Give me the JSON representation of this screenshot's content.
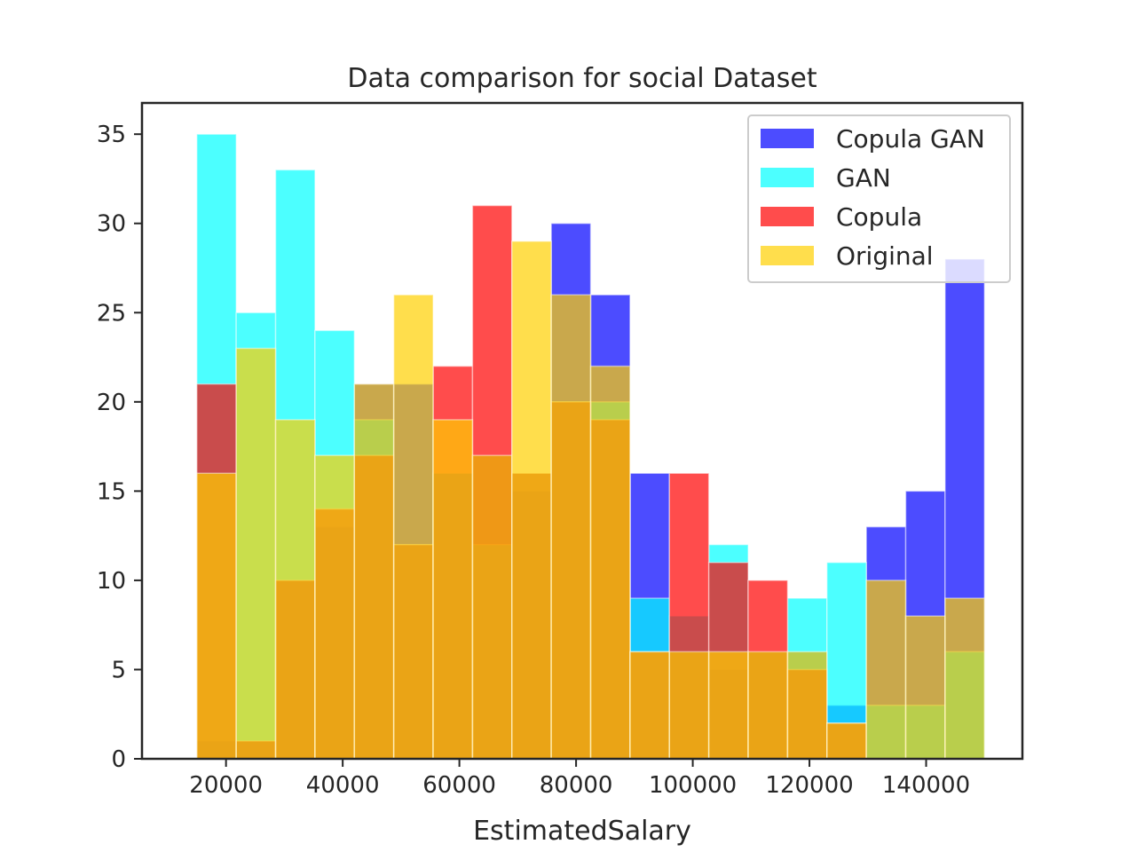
{
  "chart_data": {
    "type": "bar",
    "subtype": "overlaid-histogram",
    "title": "Data comparison for social Dataset",
    "xlabel": "EstimatedSalary",
    "ylabel": "",
    "xlim": [
      5600,
      156500
    ],
    "ylim": [
      0,
      36.75
    ],
    "xticks": [
      20000,
      40000,
      60000,
      80000,
      100000,
      120000,
      140000
    ],
    "xtick_labels": [
      "20000",
      "40000",
      "60000",
      "80000",
      "100000",
      "120000",
      "140000"
    ],
    "yticks": [
      0,
      5,
      10,
      15,
      20,
      25,
      30,
      35
    ],
    "ytick_labels": [
      "0",
      "5",
      "10",
      "15",
      "20",
      "25",
      "30",
      "35"
    ],
    "grid": false,
    "legend_position": "upper-right",
    "bin_edges": [
      15000,
      21750,
      28500,
      35250,
      42000,
      48750,
      55500,
      62250,
      69000,
      75750,
      82500,
      89250,
      96000,
      102750,
      109500,
      116250,
      123000,
      129750,
      136500,
      143250,
      150000
    ],
    "series": [
      {
        "name": "Copula GAN",
        "color": "#0000ff",
        "values": [
          1,
          1,
          10,
          13,
          21,
          21,
          16,
          17,
          15,
          30,
          26,
          16,
          6,
          5,
          6,
          6,
          3,
          13,
          15,
          28
        ]
      },
      {
        "name": "GAN",
        "color": "#00ffff",
        "values": [
          35,
          25,
          33,
          24,
          19,
          12,
          16,
          12,
          16,
          20,
          20,
          9,
          8,
          12,
          6,
          9,
          11,
          3,
          3,
          6
        ]
      },
      {
        "name": "Copula",
        "color": "#ff0000",
        "values": [
          21,
          1,
          10,
          14,
          17,
          12,
          22,
          31,
          16,
          20,
          19,
          6,
          16,
          11,
          10,
          5,
          2,
          0,
          0,
          0
        ]
      },
      {
        "name": "Original",
        "color": "#ffd000",
        "values": [
          16,
          23,
          19,
          17,
          21,
          26,
          19,
          17,
          29,
          26,
          22,
          6,
          6,
          6,
          6,
          6,
          2,
          10,
          8,
          9
        ]
      }
    ]
  }
}
